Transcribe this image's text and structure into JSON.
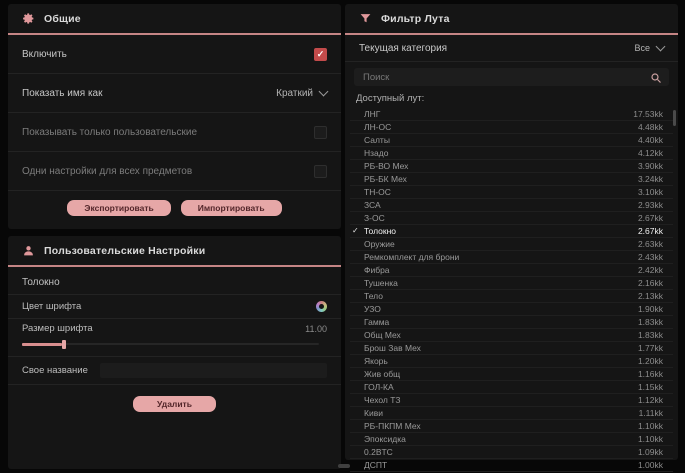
{
  "colors": {
    "background": "#070707",
    "panel": "#151515",
    "accent_rose": "#e6a7a7",
    "header_underline": "#c58585",
    "checked_checkbox": "#c34b4b",
    "selected_row_text": "#f2f2f2"
  },
  "icons": {
    "general": "gear-icon",
    "custom": "user-icon",
    "filter": "funnel-icon",
    "search": "magnifier-icon",
    "font_color": "palette-icon",
    "dropdown": "chevron-down-icon"
  },
  "general_panel": {
    "title": "Общие",
    "check_glyph": "✓",
    "rows": [
      {
        "label": "Включить",
        "control": "checkbox",
        "checked": true
      },
      {
        "label": "Показать имя как",
        "control": "select",
        "value": "Краткий"
      },
      {
        "label": "Показывать только пользовательские",
        "control": "checkbox",
        "checked": false
      },
      {
        "label": "Одни настройки для всех предметов",
        "control": "checkbox",
        "checked": false
      }
    ],
    "buttons": {
      "export": "Экспортировать",
      "import": "Импортировать"
    }
  },
  "custom_settings_panel": {
    "title": "Пользовательские Настройки",
    "item_name": "Толокно",
    "font_color_label": "Цвет шрифта",
    "font_size_label": "Размер шрифта",
    "font_size_value": "11.00",
    "custom_name_label": "Свое название",
    "custom_name_value": "",
    "delete_button": "Удалить"
  },
  "loot_filter_panel": {
    "title": "Фильтр Лута",
    "category_label": "Текущая категория",
    "category_value": "Все",
    "search_placeholder": "Поиск",
    "list_label": "Доступный лут:",
    "check_glyph": "✓",
    "items": [
      {
        "name": "ЛНГ",
        "value": "17.53kk",
        "selected": false
      },
      {
        "name": "ЛН-ОС",
        "value": "4.48kk",
        "selected": false
      },
      {
        "name": "Салты",
        "value": "4.40kk",
        "selected": false
      },
      {
        "name": "Нзадо",
        "value": "4.12kk",
        "selected": false
      },
      {
        "name": "РБ-ВО Мех",
        "value": "3.90kk",
        "selected": false
      },
      {
        "name": "РБ-БК Мех",
        "value": "3.24kk",
        "selected": false
      },
      {
        "name": "ТН-ОС",
        "value": "3.10kk",
        "selected": false
      },
      {
        "name": "ЗСА",
        "value": "2.93kk",
        "selected": false
      },
      {
        "name": "З-ОС",
        "value": "2.67kk",
        "selected": false
      },
      {
        "name": "Толокно",
        "value": "2.67kk",
        "selected": true
      },
      {
        "name": "Оружие",
        "value": "2.63kk",
        "selected": false
      },
      {
        "name": "Ремкомплект для брони",
        "value": "2.43kk",
        "selected": false
      },
      {
        "name": "Фибра",
        "value": "2.42kk",
        "selected": false
      },
      {
        "name": "Тушенка",
        "value": "2.16kk",
        "selected": false
      },
      {
        "name": "Тело",
        "value": "2.13kk",
        "selected": false
      },
      {
        "name": "УЗО",
        "value": "1.90kk",
        "selected": false
      },
      {
        "name": "Гамма",
        "value": "1.83kk",
        "selected": false
      },
      {
        "name": "Общ Мех",
        "value": "1.83kk",
        "selected": false
      },
      {
        "name": "Брош Зав Мех",
        "value": "1.77kk",
        "selected": false
      },
      {
        "name": "Якорь",
        "value": "1.20kk",
        "selected": false
      },
      {
        "name": "Жив общ",
        "value": "1.16kk",
        "selected": false
      },
      {
        "name": "ГОЛ-КА",
        "value": "1.15kk",
        "selected": false
      },
      {
        "name": "Чехол ТЗ",
        "value": "1.12kk",
        "selected": false
      },
      {
        "name": "Киви",
        "value": "1.11kk",
        "selected": false
      },
      {
        "name": "РБ-ПКПМ Мех",
        "value": "1.10kk",
        "selected": false
      },
      {
        "name": "Эпоксидка",
        "value": "1.10kk",
        "selected": false
      },
      {
        "name": "0.2BTC",
        "value": "1.09kk",
        "selected": false
      },
      {
        "name": "ДСПТ",
        "value": "1.00kk",
        "selected": false
      }
    ]
  }
}
